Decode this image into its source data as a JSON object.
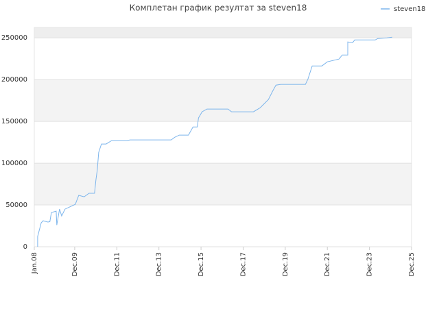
{
  "chart_data": {
    "type": "line",
    "title": "Комплетан график резултат за steven18",
    "x": [
      2008.16,
      2008.16,
      2008.33,
      2008.42,
      2008.65,
      2008.74,
      2008.81,
      2009.04,
      2009.07,
      2009.2,
      2009.3,
      2009.46,
      2009.95,
      2010.11,
      2010.37,
      2010.6,
      2010.86,
      2010.93,
      2010.99,
      2011.06,
      2011.19,
      2011.41,
      2011.67,
      2012.39,
      2012.55,
      2014.5,
      2014.67,
      2014.89,
      2015.32,
      2015.54,
      2015.74,
      2015.8,
      2015.97,
      2016.2,
      2017.2,
      2017.37,
      2017.92,
      2018.41,
      2018.73,
      2019.12,
      2019.32,
      2019.48,
      2019.71,
      2020.88,
      2021.0,
      2021.2,
      2021.66,
      2021.92,
      2022.47,
      2022.63,
      2022.89,
      2022.89,
      2023.12,
      2023.22,
      2023.93,
      2024.19,
      2024.32,
      2024.75,
      2025.0
    ],
    "series": [
      {
        "name": "steven18",
        "color": "#7cb5ec",
        "values": [
          0,
          12300,
          28700,
          31100,
          29500,
          30000,
          41000,
          42600,
          26000,
          45000,
          36900,
          45000,
          50800,
          61500,
          59800,
          64000,
          64000,
          80300,
          91800,
          113000,
          123000,
          123000,
          127000,
          127000,
          127900,
          127900,
          131000,
          133600,
          133600,
          143400,
          143400,
          154100,
          161500,
          164800,
          164800,
          161500,
          161500,
          161500,
          166400,
          176200,
          186100,
          193400,
          194300,
          194300,
          200800,
          216400,
          216400,
          221300,
          224600,
          229500,
          229500,
          245100,
          244300,
          247500,
          247500,
          247500,
          249200,
          250000,
          250800
        ]
      }
    ],
    "xlim": [
      2008.0,
      2025.92
    ],
    "xticks": [
      {
        "value": 2008.0,
        "label": "Jan.08"
      },
      {
        "value": 2009.92,
        "label": "Dec.09"
      },
      {
        "value": 2011.92,
        "label": "Dec.11"
      },
      {
        "value": 2013.92,
        "label": "Dec.13"
      },
      {
        "value": 2015.92,
        "label": "Dec.15"
      },
      {
        "value": 2017.92,
        "label": "Dec.17"
      },
      {
        "value": 2019.92,
        "label": "Dec.19"
      },
      {
        "value": 2021.92,
        "label": "Dec.21"
      },
      {
        "value": 2023.92,
        "label": "Dec.23"
      },
      {
        "value": 2025.92,
        "label": "Dec.25"
      }
    ],
    "ylim": [
      0,
      262500
    ],
    "yticks": [
      0,
      50000,
      100000,
      150000,
      200000,
      250000
    ],
    "grid": true,
    "legend": "top-right"
  }
}
